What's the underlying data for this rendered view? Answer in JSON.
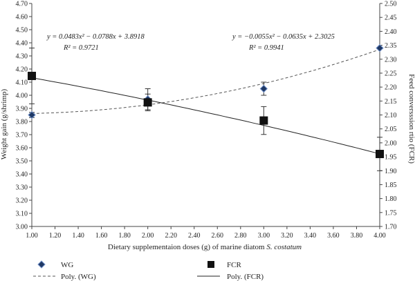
{
  "chart_data": {
    "type": "scatter",
    "xlabel": "Dietary supplementaion doses (g) of marine diatom",
    "xlabel_italic": "S. costatum",
    "ylabel_left": "Weight gain (g/shrimp)",
    "ylabel_right": "Feed conversssion rtio (FCR)",
    "xlim": [
      1.0,
      4.0
    ],
    "ylim_left": [
      3.0,
      4.7
    ],
    "ylim_right": [
      1.7,
      2.5
    ],
    "x_ticks": [
      "1.00",
      "1.20",
      "1.40",
      "1.60",
      "1.80",
      "2.00",
      "2.20",
      "2.40",
      "2.60",
      "2.80",
      "3.00",
      "3.20",
      "3.40",
      "3.60",
      "3.80",
      "4.00"
    ],
    "y_left_ticks": [
      "3.00",
      "3.10",
      "3.20",
      "3.30",
      "3.40",
      "3.50",
      "3.60",
      "3.70",
      "3.80",
      "3.90",
      "4.00",
      "4.10",
      "4.20",
      "4.30",
      "4.40",
      "4.50",
      "4.60",
      "4.70"
    ],
    "y_right_ticks": [
      "1.70",
      "1.75",
      "1.80",
      "1.85",
      "1.90",
      "1.95",
      "2.00",
      "2.05",
      "2.10",
      "2.15",
      "2.20",
      "2.25",
      "2.30",
      "2.35",
      "2.40",
      "2.45",
      "2.50"
    ],
    "grid": false,
    "legend_position": "bottom",
    "series": [
      {
        "name": "WG",
        "axis": "left",
        "marker": "diamond",
        "color": "#1f3864",
        "x": [
          1.0,
          2.0,
          3.0,
          4.0
        ],
        "y": [
          3.85,
          3.97,
          4.05,
          4.36
        ],
        "err": [
          0.02,
          0.08,
          0.05,
          0.0
        ],
        "fit": {
          "name": "Poly. (WG)",
          "style": "dashed",
          "coeffs": [
            0.0483,
            -0.0788,
            3.8918
          ],
          "equation_lines": [
            "y = 0.0483x² − 0.0788x + 3.8918",
            "R² = 0.9721"
          ]
        }
      },
      {
        "name": "FCR",
        "axis": "right",
        "marker": "square",
        "color": "#111111",
        "x": [
          1.0,
          2.0,
          3.0,
          4.0
        ],
        "y": [
          2.24,
          2.145,
          2.08,
          1.96
        ],
        "err": [
          0.1,
          0.03,
          0.05,
          0.06
        ],
        "fit": {
          "name": "Poly. (FCR)",
          "style": "solid",
          "coeffs": [
            -0.0055,
            -0.0635,
            2.3025
          ],
          "equation_lines": [
            "y = −0.0055x² − 0.0635x + 2.3025",
            "R² = 0.9941"
          ]
        }
      }
    ]
  }
}
